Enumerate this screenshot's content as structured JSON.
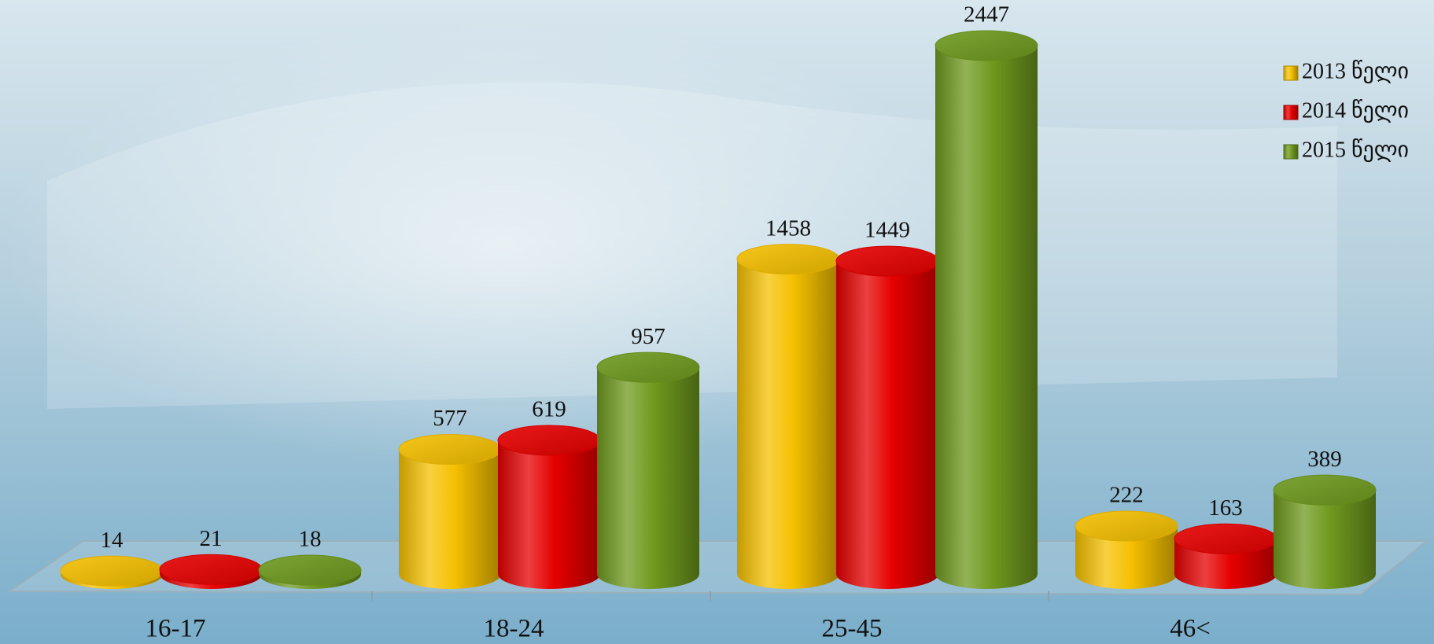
{
  "chart_data": {
    "type": "bar",
    "style": "3d-cylinder",
    "categories": [
      "16-17",
      "18-24",
      "25-45",
      "46<"
    ],
    "series": [
      {
        "name": "2013 წელი",
        "color": "#f5c000",
        "values": [
          14,
          577,
          1458,
          222
        ]
      },
      {
        "name": "2014 წელი",
        "color": "#e60000",
        "values": [
          21,
          619,
          1449,
          163
        ]
      },
      {
        "name": "2015 წელი",
        "color": "#6f9a1e",
        "values": [
          18,
          957,
          2447,
          389
        ]
      }
    ],
    "legend": "top-right",
    "data_labels": true,
    "grid": false
  }
}
